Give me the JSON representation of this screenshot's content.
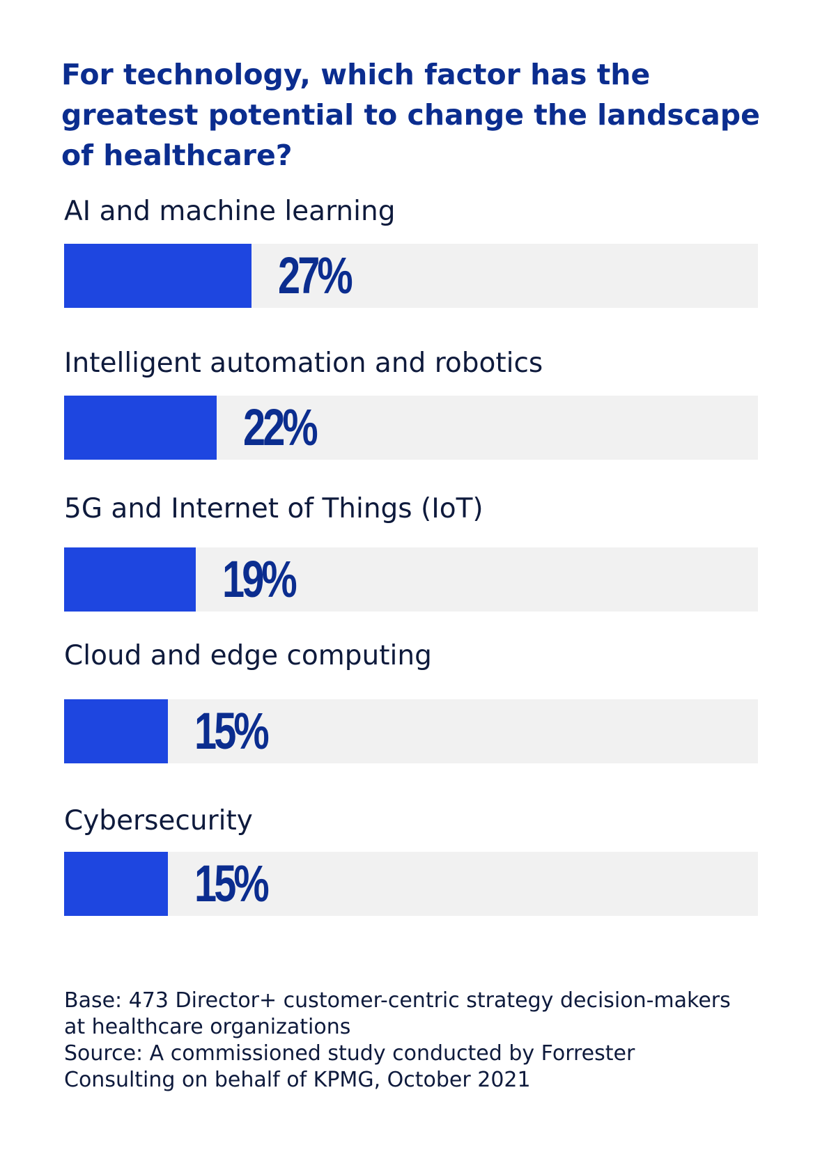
{
  "chart_data": {
    "type": "bar",
    "orientation": "horizontal",
    "title": "For technology, which factor has the greatest potential to change the landscape of healthcare?",
    "categories": [
      "AI and machine learning",
      "Intelligent automation and robotics",
      "5G and Internet of Things (IoT)",
      "Cloud and edge computing",
      "Cybersecurity"
    ],
    "values": [
      27,
      22,
      19,
      15,
      15
    ],
    "value_labels": [
      "27%",
      "22%",
      "19%",
      "15%",
      "15%"
    ],
    "xlim": [
      0,
      100
    ],
    "grid": false,
    "legend": "none",
    "colors": {
      "bar": "#1e46e0",
      "track": "#f1f1f1",
      "title": "#0b2d8f",
      "text": "#0e1a3c"
    }
  },
  "footnote": {
    "base_line1": "Base: 473 Director+ customer-centric strategy decision-makers",
    "base_line2": "at healthcare organizations",
    "source_line1": "Source: A commissioned study conducted by Forrester",
    "source_line2": "Consulting on behalf of KPMG, October 2021"
  }
}
